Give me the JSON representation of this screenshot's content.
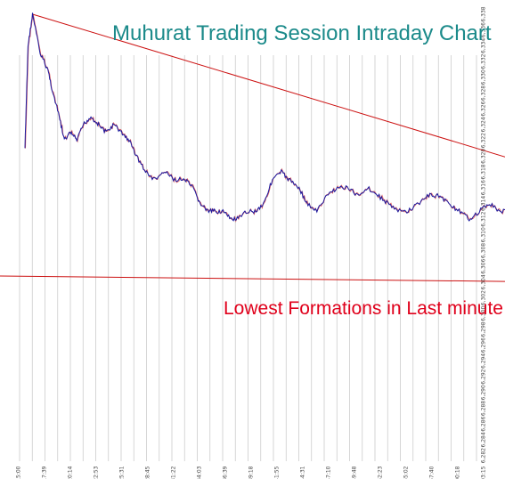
{
  "chart_data": {
    "type": "line",
    "title": "Muhurat Trading Session Intraday Chart",
    "annotation": "Lowest Formations in Last minute",
    "xlabel": "",
    "ylabel": "",
    "x_ticks": [
      "18:15:00",
      "18:17:39",
      "18:20:14",
      "18:22:53",
      "18:25:31",
      "18:28:45",
      "18:31:22",
      "18:34:03",
      "18:36:39",
      "18:39:18",
      "18:41:55",
      "18:44:31",
      "18:47:10",
      "18:49:48",
      "18:52:23",
      "18:55:02",
      "18:57:40",
      "19:00:18",
      "19:03:15"
    ],
    "y_ticks": [
      "6,338",
      "6,336",
      "6,334",
      "6,332",
      "6,330",
      "6,328",
      "6,326",
      "6,324",
      "6,322",
      "6,320",
      "6,318",
      "6,316",
      "6,314",
      "6,312",
      "6,310",
      "6,308",
      "6,306",
      "6,304",
      "6,302",
      "6,300",
      "6,298",
      "6,296",
      "6,294",
      "6,292",
      "6,290",
      "6,288",
      "6,286",
      "6,284",
      "6,282"
    ],
    "ylim": [
      6282,
      6338
    ],
    "grid": "vertical",
    "series": [
      {
        "color": "#1a1aa0",
        "points": [
          [
            0,
            6321
          ],
          [
            0.12,
            6334
          ],
          [
            0.3,
            6338
          ],
          [
            0.6,
            6333
          ],
          [
            0.9,
            6331
          ],
          [
            1.1,
            6328
          ],
          [
            1.35,
            6325
          ],
          [
            1.55,
            6322
          ],
          [
            1.8,
            6323
          ],
          [
            2.05,
            6322
          ],
          [
            2.3,
            6324
          ],
          [
            2.6,
            6325
          ],
          [
            2.9,
            6324
          ],
          [
            3.2,
            6323
          ],
          [
            3.5,
            6324
          ],
          [
            3.8,
            6323
          ],
          [
            4.1,
            6322
          ],
          [
            4.4,
            6320
          ],
          [
            4.75,
            6318
          ],
          [
            5.1,
            6317
          ],
          [
            5.5,
            6318
          ],
          [
            5.9,
            6317
          ],
          [
            6.3,
            6317
          ],
          [
            6.6,
            6316
          ],
          [
            6.9,
            6314
          ],
          [
            7.2,
            6313
          ],
          [
            7.5,
            6313
          ],
          [
            7.8,
            6313
          ],
          [
            8.1,
            6312
          ],
          [
            8.4,
            6312
          ],
          [
            8.75,
            6313
          ],
          [
            9.1,
            6313
          ],
          [
            9.4,
            6314
          ],
          [
            9.75,
            6317
          ],
          [
            10.1,
            6318
          ],
          [
            10.4,
            6317
          ],
          [
            10.8,
            6316
          ],
          [
            11.1,
            6314
          ],
          [
            11.5,
            6313
          ],
          [
            11.9,
            6315
          ],
          [
            12.3,
            6316
          ],
          [
            12.7,
            6316
          ],
          [
            13.1,
            6315
          ],
          [
            13.5,
            6316
          ],
          [
            13.9,
            6315
          ],
          [
            14.3,
            6314
          ],
          [
            14.7,
            6313
          ],
          [
            15.1,
            6313
          ],
          [
            15.5,
            6314
          ],
          [
            15.9,
            6315
          ],
          [
            16.3,
            6315
          ],
          [
            16.7,
            6314
          ],
          [
            17.1,
            6313
          ],
          [
            17.5,
            6312
          ],
          [
            17.9,
            6313
          ],
          [
            18.3,
            6314
          ],
          [
            18.7,
            6313
          ],
          [
            19.1,
            6313
          ],
          [
            19.5,
            6314
          ],
          [
            19.9,
            6315
          ],
          [
            20.3,
            6316
          ],
          [
            20.7,
            6316
          ],
          [
            21.1,
            6315
          ],
          [
            21.5,
            6314
          ],
          [
            21.9,
            6314
          ],
          [
            22.3,
            6313
          ],
          [
            22.7,
            6313
          ],
          [
            23.1,
            6312
          ],
          [
            23.5,
            6311
          ],
          [
            23.9,
            6310
          ],
          [
            24.3,
            6310
          ],
          [
            24.7,
            6309
          ],
          [
            25.1,
            6309
          ],
          [
            25.5,
            6310
          ],
          [
            25.9,
            6310
          ],
          [
            26.3,
            6309
          ],
          [
            26.6,
            6309
          ],
          [
            26.9,
            6308
          ],
          [
            27.2,
            6306
          ],
          [
            27.5,
            6307
          ],
          [
            27.8,
            6308
          ],
          [
            28.1,
            6309
          ],
          [
            28.4,
            6309
          ],
          [
            28.7,
            6308
          ],
          [
            29.0,
            6307
          ],
          [
            29.3,
            6307
          ],
          [
            29.55,
            6305
          ],
          [
            29.8,
            6304
          ],
          [
            30.05,
            6306
          ],
          [
            30.3,
            6307
          ],
          [
            30.8,
            6307
          ],
          [
            31.4,
            6307
          ]
        ]
      }
    ],
    "trendlines": [
      {
        "color": "#cc1111",
        "from": [
          0.3,
          6338
        ],
        "to": [
          33.2,
          6306
        ],
        "label": "descending resistance"
      },
      {
        "color": "#cc1111",
        "from": [
          -1.5,
          6304.8
        ],
        "to": [
          33.2,
          6303.6
        ],
        "label": "support"
      }
    ],
    "y_mapping_note": "",
    "x_mapping_note": "",
    "colors": {
      "title": "#1b8a8a",
      "annotation": "#e0001b",
      "grid": "#cccccc",
      "price": "#1a1aa0",
      "trendline": "#cc1111"
    }
  }
}
